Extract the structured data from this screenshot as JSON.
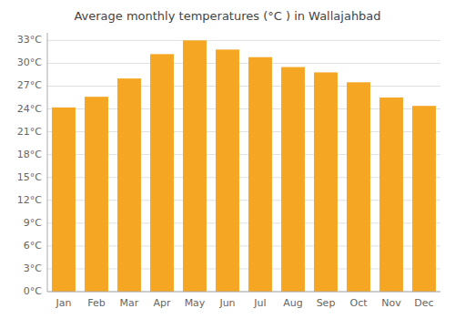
{
  "chart_data": {
    "type": "bar",
    "title": "Average monthly temperatures (°C ) in Wallajahbad",
    "categories": [
      "Jan",
      "Feb",
      "Mar",
      "Apr",
      "May",
      "Jun",
      "Jul",
      "Aug",
      "Sep",
      "Oct",
      "Nov",
      "Dec"
    ],
    "values": [
      24.2,
      25.6,
      28.0,
      31.2,
      33.0,
      31.8,
      30.8,
      29.5,
      28.8,
      27.5,
      25.5,
      24.4
    ],
    "color": "#F5A623",
    "ylim": [
      0,
      34
    ],
    "yticks": [
      {
        "value": 0,
        "label": "0°C"
      },
      {
        "value": 3,
        "label": "3°C"
      },
      {
        "value": 6,
        "label": "6°C"
      },
      {
        "value": 9,
        "label": "9°C"
      },
      {
        "value": 12,
        "label": "12°C"
      },
      {
        "value": 15,
        "label": "15°C"
      },
      {
        "value": 18,
        "label": "18°C"
      },
      {
        "value": 21,
        "label": "21°C"
      },
      {
        "value": 24,
        "label": "24°C"
      },
      {
        "value": 27,
        "label": "27°C"
      },
      {
        "value": 30,
        "label": "30°C"
      },
      {
        "value": 33,
        "label": "33°C"
      }
    ],
    "grid": true
  }
}
